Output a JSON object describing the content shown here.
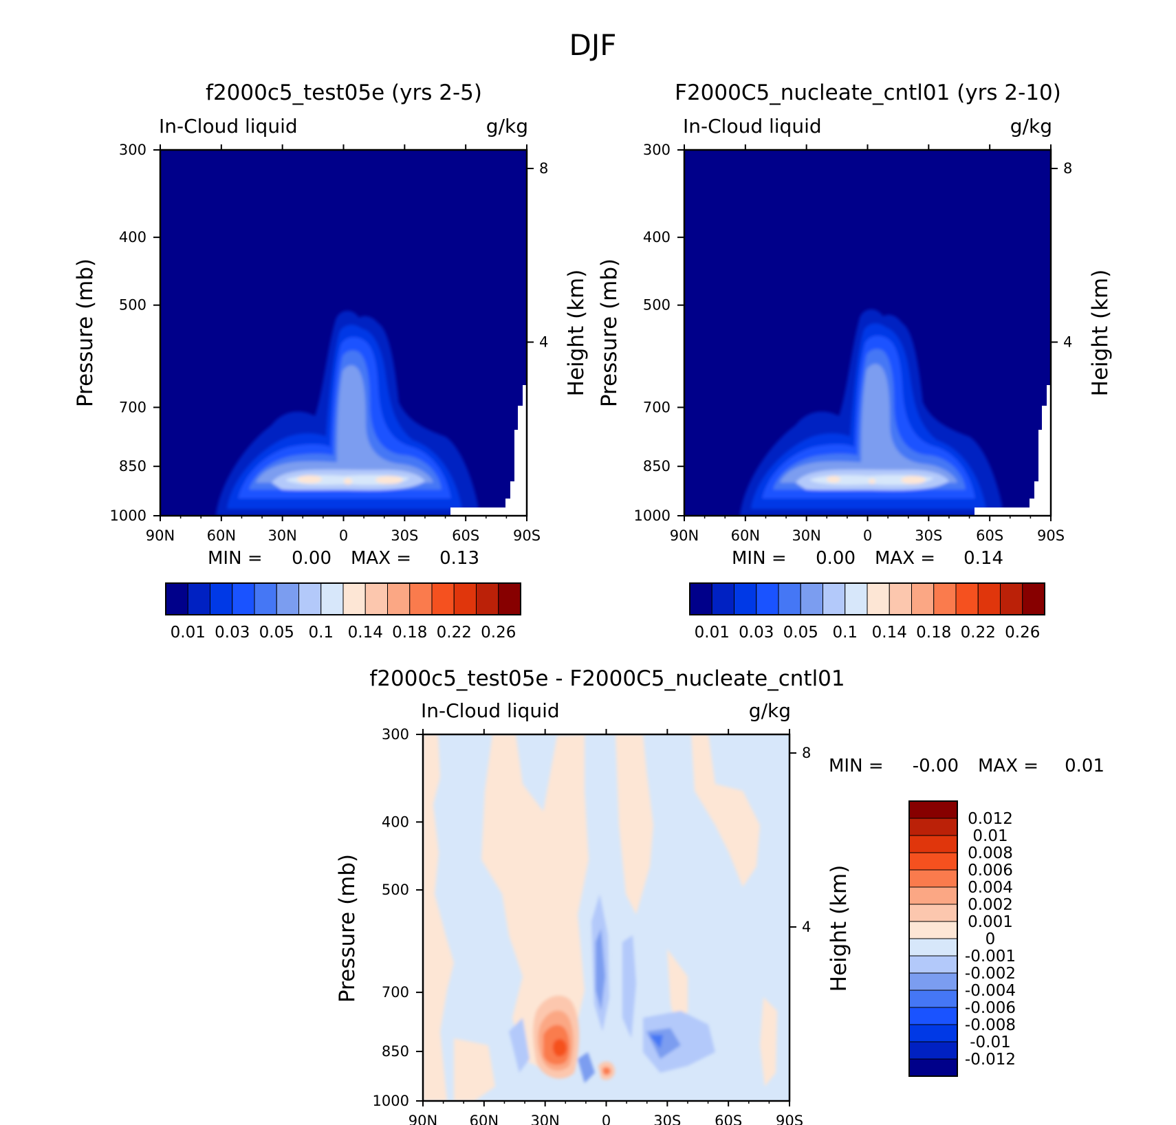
{
  "figure": {
    "title": "DJF"
  },
  "chart_data": [
    {
      "type": "heatmap",
      "title": "f2000c5_test05e (yrs 2-5)",
      "left_label": "In-Cloud liquid",
      "right_label": "g/kg",
      "ylabel": "Pressure (mb)",
      "ylabel_right": "Height (km)",
      "x_ticks": [
        "90N",
        "60N",
        "30N",
        "0",
        "30S",
        "60S",
        "90S"
      ],
      "y_ticks": [
        300,
        400,
        500,
        700,
        850,
        1000
      ],
      "y_scale": "log",
      "height_ticks": [
        8,
        4
      ],
      "min_label": "MIN =",
      "min_value": "0.00",
      "max_label": "MAX =",
      "max_value": "0.13",
      "levels": [
        0.01,
        0.02,
        0.03,
        0.04,
        0.05,
        0.07,
        0.1,
        0.12,
        0.14,
        0.16,
        0.18,
        0.2,
        0.22,
        0.24,
        0.26
      ],
      "colorbar_labels": [
        "0.01",
        "0.03",
        "0.05",
        "0.1",
        "0.14",
        "0.18",
        "0.22",
        "0.26"
      ],
      "colors": [
        "#00008a",
        "#0021c2",
        "#0039e6",
        "#1a53ff",
        "#4577f5",
        "#7b9df0",
        "#b3c9fa",
        "#d7e7fa",
        "#fde6d5",
        "#fcc7ae",
        "#fba784",
        "#fa7b4d",
        "#f5511f",
        "#e0360c",
        "#bb2108",
        "#870000"
      ],
      "missing_region": "surface below ground near 90S",
      "field_summary": "Max near 850 mb between 30N and 30S; tropical column extends to about 500 mb at the equator"
    },
    {
      "type": "heatmap",
      "title": "F2000C5_nucleate_cntl01 (yrs 2-10)",
      "left_label": "In-Cloud liquid",
      "right_label": "g/kg",
      "ylabel": "Pressure (mb)",
      "ylabel_right": "Height (km)",
      "x_ticks": [
        "90N",
        "60N",
        "30N",
        "0",
        "30S",
        "60S",
        "90S"
      ],
      "y_ticks": [
        300,
        400,
        500,
        700,
        850,
        1000
      ],
      "y_scale": "log",
      "height_ticks": [
        8,
        4
      ],
      "min_label": "MIN =",
      "min_value": "0.00",
      "max_label": "MAX =",
      "max_value": "0.14",
      "levels": [
        0.01,
        0.02,
        0.03,
        0.04,
        0.05,
        0.07,
        0.1,
        0.12,
        0.14,
        0.16,
        0.18,
        0.2,
        0.22,
        0.24,
        0.26
      ],
      "colorbar_labels": [
        "0.01",
        "0.03",
        "0.05",
        "0.1",
        "0.14",
        "0.18",
        "0.22",
        "0.26"
      ],
      "colors": [
        "#00008a",
        "#0021c2",
        "#0039e6",
        "#1a53ff",
        "#4577f5",
        "#7b9df0",
        "#b3c9fa",
        "#d7e7fa",
        "#fde6d5",
        "#fcc7ae",
        "#fba784",
        "#fa7b4d",
        "#f5511f",
        "#e0360c",
        "#bb2108",
        "#870000"
      ],
      "missing_region": "surface below ground near 90S",
      "field_summary": "Max near 850 mb between 30N and 30S; tropical column extends to about 500 mb at the equator"
    },
    {
      "type": "heatmap",
      "title": "f2000c5_test05e - F2000C5_nucleate_cntl01",
      "left_label": "In-Cloud liquid",
      "right_label": "g/kg",
      "ylabel": "Pressure (mb)",
      "ylabel_right": "Height (km)",
      "x_ticks": [
        "90N",
        "60N",
        "30N",
        "0",
        "30S",
        "60S",
        "90S"
      ],
      "y_ticks": [
        300,
        400,
        500,
        700,
        850,
        1000
      ],
      "y_scale": "log",
      "height_ticks": [
        8,
        4
      ],
      "min_label": "MIN =",
      "min_value": "-0.00",
      "max_label": "MAX =",
      "max_value": "0.01",
      "levels": [
        -0.012,
        -0.01,
        -0.008,
        -0.006,
        -0.004,
        -0.002,
        -0.001,
        0,
        0.001,
        0.002,
        0.004,
        0.006,
        0.008,
        0.01,
        0.012
      ],
      "colorbar_labels": [
        "0.012",
        "0.01",
        "0.008",
        "0.006",
        "0.004",
        "0.002",
        "0.001",
        "0",
        "-0.001",
        "-0.002",
        "-0.004",
        "-0.006",
        "-0.008",
        "-0.01",
        "-0.012"
      ],
      "colors": [
        "#00008a",
        "#0021c2",
        "#0039e6",
        "#1a53ff",
        "#4577f5",
        "#7b9df0",
        "#b3c9fa",
        "#d7e7fa",
        "#fde6d5",
        "#fcc7ae",
        "#fba784",
        "#fa7b4d",
        "#f5511f",
        "#e0360c",
        "#bb2108",
        "#870000"
      ],
      "field_summary": "Mostly near zero; positive maximum near 20N-25N at 850-900 mb; negative streaks near 10N, 5S and 25S"
    }
  ]
}
